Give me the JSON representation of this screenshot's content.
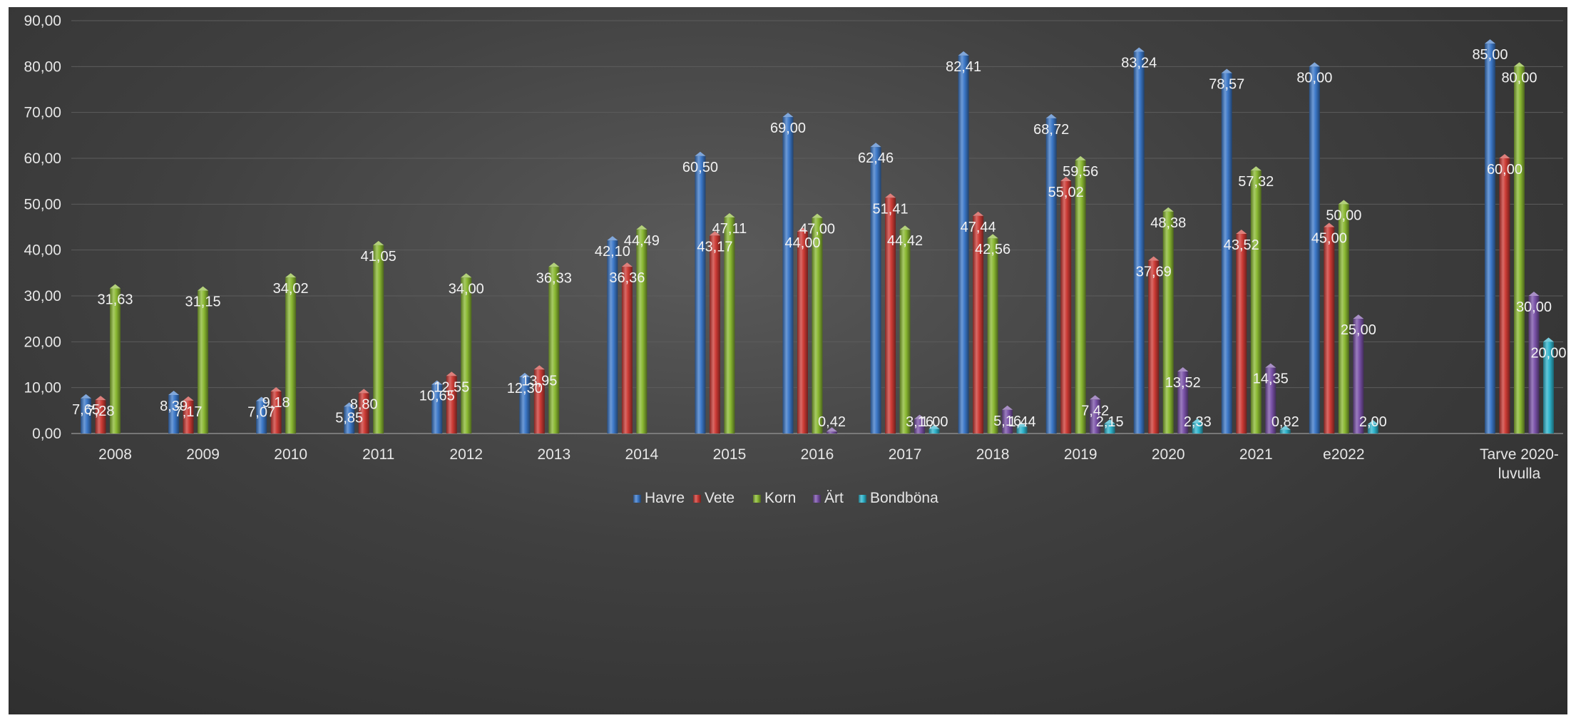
{
  "chart_data": {
    "type": "bar",
    "categories": [
      "2008",
      "2009",
      "2010",
      "2011",
      "2012",
      "2013",
      "2014",
      "2015",
      "2016",
      "2017",
      "2018",
      "2019",
      "2020",
      "2021",
      "e2022",
      "",
      "Tarve 2020-luvulla"
    ],
    "category_lines": [
      [
        "2008"
      ],
      [
        "2009"
      ],
      [
        "2010"
      ],
      [
        "2011"
      ],
      [
        "2012"
      ],
      [
        "2013"
      ],
      [
        "2014"
      ],
      [
        "2015"
      ],
      [
        "2016"
      ],
      [
        "2017"
      ],
      [
        "2018"
      ],
      [
        "2019"
      ],
      [
        "2020"
      ],
      [
        "2021"
      ],
      [
        "e2022"
      ],
      [
        ""
      ],
      [
        "Tarve 2020-",
        "luvulla"
      ]
    ],
    "series": [
      {
        "name": "Havre",
        "color": "#3c78c8",
        "values": [
          7.65,
          8.39,
          7.07,
          5.85,
          10.65,
          12.3,
          42.1,
          60.5,
          69.0,
          62.46,
          82.41,
          68.72,
          83.24,
          78.57,
          80.0,
          null,
          85.0
        ],
        "labels": [
          "7,65",
          "8,39",
          "7,07",
          "5,85",
          "10,65",
          "12,30",
          "42,10",
          "60,50",
          "69,00",
          "62,46",
          "82,41",
          "68,72",
          "83,24",
          "78,57",
          "80,00",
          "",
          "85,00"
        ]
      },
      {
        "name": "Vete",
        "color": "#cc3a34",
        "values": [
          7.28,
          7.17,
          9.18,
          8.8,
          12.55,
          13.95,
          36.36,
          43.17,
          44.0,
          51.41,
          47.44,
          55.02,
          37.69,
          43.52,
          45.0,
          null,
          60.0
        ],
        "labels": [
          "7,28",
          "7,17",
          "9,18",
          "8,80",
          "12,55",
          "13,95",
          "36,36",
          "43,17",
          "44,00",
          "51,41",
          "47,44",
          "55,02",
          "37,69",
          "43,52",
          "45,00",
          "",
          "60,00"
        ]
      },
      {
        "name": "Korn",
        "color": "#8ab832",
        "values": [
          31.63,
          31.15,
          34.02,
          41.05,
          34.0,
          36.33,
          44.49,
          47.11,
          47.0,
          44.42,
          42.56,
          59.56,
          48.38,
          57.32,
          50.0,
          null,
          80.0
        ],
        "labels": [
          "31,63",
          "31,15",
          "34,02",
          "41,05",
          "34,00",
          "36,33",
          "44,49",
          "47,11",
          "47,00",
          "44,42",
          "42,56",
          "59,56",
          "48,38",
          "57,32",
          "50,00",
          "",
          "80,00"
        ]
      },
      {
        "name": "Ärt",
        "color": "#7a52a8",
        "values": [
          null,
          null,
          null,
          null,
          null,
          null,
          null,
          null,
          0.42,
          3.16,
          5.16,
          7.42,
          13.52,
          14.35,
          25.0,
          null,
          30.0
        ],
        "labels": [
          "",
          "",
          "",
          "",
          "",
          "",
          "",
          "",
          "0,42",
          "3,16",
          "5,16",
          "7,42",
          "13,52",
          "14,35",
          "25,00",
          "",
          "30,00"
        ]
      },
      {
        "name": "Bondböna",
        "color": "#2fb4cc",
        "values": [
          null,
          null,
          null,
          null,
          null,
          null,
          null,
          null,
          null,
          1.0,
          1.44,
          2.15,
          2.33,
          0.82,
          2.0,
          null,
          20.0
        ],
        "labels": [
          "",
          "",
          "",
          "",
          "",
          "",
          "",
          "",
          "",
          "1,00",
          "1,44",
          "2,15",
          "2,33",
          "0,82",
          "2,00",
          "",
          "20,00"
        ]
      }
    ],
    "ylim": [
      0,
      90
    ],
    "yticks": [
      0,
      10,
      20,
      30,
      40,
      50,
      60,
      70,
      80,
      90
    ],
    "ytick_labels": [
      "0,00",
      "10,00",
      "20,00",
      "30,00",
      "40,00",
      "50,00",
      "60,00",
      "70,00",
      "80,00",
      "90,00"
    ],
    "title": "",
    "xlabel": "",
    "ylabel": "",
    "grid": true,
    "legend_position": "bottom"
  }
}
